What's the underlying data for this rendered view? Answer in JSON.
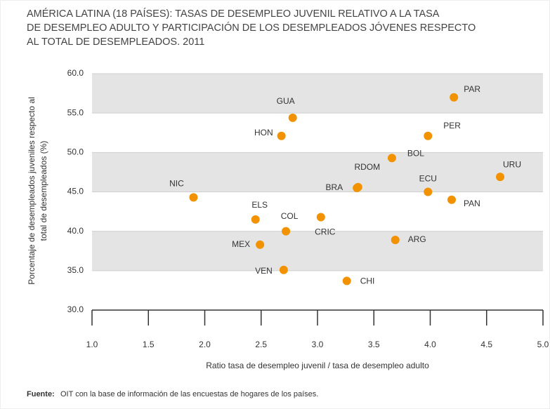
{
  "chart_data": {
    "type": "scatter",
    "title_lines": [
      "AMÉRICA LATINA (18 PAÍSES): TASAS DE DESEMPLEO JUVENIL RELATIVO A LA TASA",
      "DE DESEMPLEO ADULTO Y PARTICIPACIÓN DE LOS DESEMPLEADOS JÓVENES RESPECTO",
      "AL TOTAL DE DESEMPLEADOS. 2011"
    ],
    "xlabel": "Ratio tasa de desempleo juvenil / tasa de desempleo adulto",
    "ylabel_lines": [
      "Porcentaje de desempleados juveniles respecto al",
      "total de desempleados (%)"
    ],
    "source_label": "Fuente:",
    "source": "OIT con la base de información de las encuestas de hogares de los países.",
    "color": "#f39200",
    "labels": [
      "PAR",
      "GUA",
      "HON",
      "PER",
      "BOL",
      "URU",
      "RDOM",
      "BRA",
      "ECU",
      "PAN",
      "NIC",
      "ELS",
      "COL",
      "CRIC",
      "ARG",
      "MEX",
      "VEN",
      "CHI"
    ],
    "x": [
      4.21,
      2.78,
      2.68,
      3.98,
      3.66,
      4.62,
      3.36,
      3.35,
      3.98,
      4.19,
      1.9,
      2.45,
      2.72,
      3.03,
      3.69,
      2.49,
      2.7,
      3.26
    ],
    "values": [
      57.0,
      54.4,
      52.1,
      52.1,
      49.3,
      46.9,
      45.6,
      45.5,
      45.0,
      44.0,
      44.3,
      41.5,
      40.0,
      41.8,
      38.9,
      38.3,
      35.1,
      33.7
    ],
    "xlim": [
      1.0,
      5.0
    ],
    "xticks": [
      {
        "value": 1,
        "label": "1.0"
      },
      {
        "value": 1.5,
        "label": "1.5"
      },
      {
        "value": 2,
        "label": "2.0"
      },
      {
        "value": 2.5,
        "label": "2.5"
      },
      {
        "value": 3,
        "label": "3.0"
      },
      {
        "value": 3.5,
        "label": "3.5"
      },
      {
        "value": 4,
        "label": "4.0"
      },
      {
        "value": 4.5,
        "label": "4.5"
      },
      {
        "value": 5,
        "label": "5.0"
      }
    ],
    "ylim": [
      30,
      60
    ],
    "yticks": [
      {
        "value": 30,
        "label": "30.0"
      },
      {
        "value": 35,
        "label": "35.0"
      },
      {
        "value": 40,
        "label": "40.0"
      },
      {
        "value": 45,
        "label": "45.0"
      },
      {
        "value": 50,
        "label": "50.0"
      },
      {
        "value": 55,
        "label": "55.0"
      },
      {
        "value": 60,
        "label": "60.0"
      }
    ],
    "grid": true
  }
}
